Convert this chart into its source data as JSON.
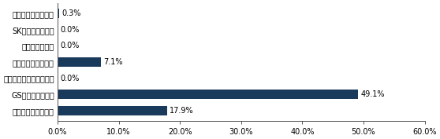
{
  "categories": [
    "롯데건설기술연구소",
    "SK건설기술연구소",
    "현대로템연구소",
    "현대건설기술연구소",
    "현대산업개발기술연구소",
    "GS건설기술연구소",
    "대우건설기술연구소"
  ],
  "values": [
    0.3,
    0.0,
    0.0,
    7.1,
    0.0,
    49.1,
    17.9
  ],
  "bar_color": "#1a3a5c",
  "label_color": "#000000",
  "background_color": "#ffffff",
  "xlim": [
    0,
    60
  ],
  "xticks": [
    0,
    10,
    20,
    30,
    40,
    50,
    60
  ],
  "xtick_labels": [
    "0.0%",
    "10.0%",
    "20.0%",
    "30.0%",
    "40.0%",
    "50.0%",
    "60.0%"
  ],
  "bar_height": 0.6,
  "fontsize": 7.0,
  "value_fontsize": 7.0
}
